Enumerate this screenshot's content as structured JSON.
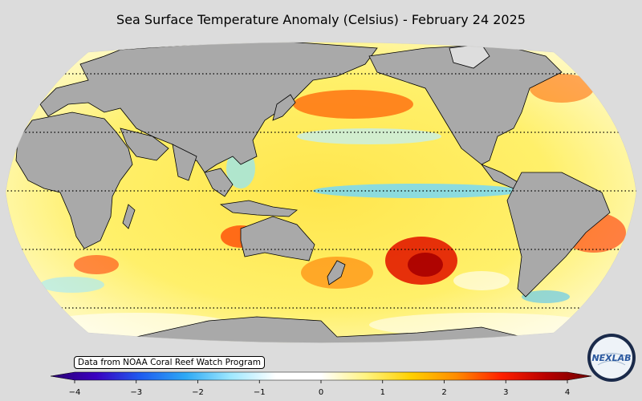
{
  "title": "Sea Surface Temperature Anomaly (Celsius) - February 24 2025",
  "credit": "Data from NOAA Coral Reef Watch Program",
  "colorbar": {
    "min": -4,
    "max": 4,
    "tick_labels": [
      "−4",
      "−3",
      "−2",
      "−1",
      "0",
      "1",
      "2",
      "3",
      "4"
    ],
    "tick_values": [
      -4,
      -3,
      -2,
      -1,
      0,
      1,
      2,
      3,
      4
    ],
    "colors": [
      "#2a0070",
      "#3a00c0",
      "#1e5cf0",
      "#2ea9f5",
      "#9fe8ff",
      "#ffffff",
      "#ffffff",
      "#fff380",
      "#ffd000",
      "#ff8c00",
      "#ff2000",
      "#b80000",
      "#700000"
    ]
  },
  "logo": {
    "text": "NEXLAB"
  },
  "map": {
    "projection": "Robinson",
    "ocean_color": "#fff27a",
    "land_color": "#a9a9a9"
  }
}
